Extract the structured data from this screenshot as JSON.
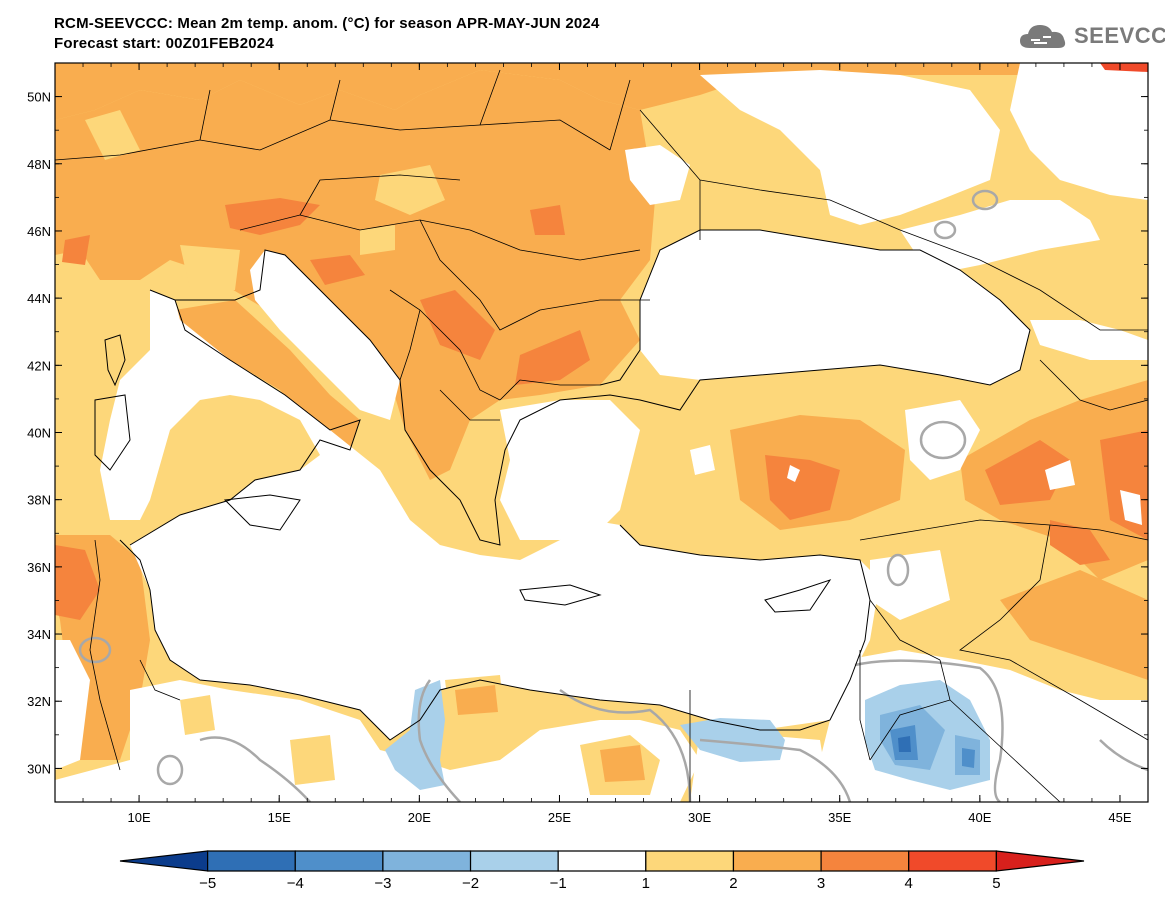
{
  "header": {
    "title_line1": "RCM-SEEVCCC: Mean 2m temp. anom. (°C) for season APR-MAY-JUN 2024",
    "title_line2": "Forecast start: 00Z01FEB2024",
    "logo_text": "SEEVCCC"
  },
  "map": {
    "lon_range": [
      7,
      46
    ],
    "lat_range": [
      29,
      51
    ],
    "lat_ticks": [
      "30N",
      "32N",
      "34N",
      "36N",
      "38N",
      "40N",
      "42N",
      "44N",
      "46N",
      "48N",
      "50N"
    ],
    "lon_ticks": [
      "10E",
      "15E",
      "20E",
      "25E",
      "30E",
      "35E",
      "40E",
      "45E"
    ]
  },
  "colorbar": {
    "labels": [
      "−5",
      "−4",
      "−3",
      "−2",
      "−1",
      "1",
      "2",
      "3",
      "4",
      "5"
    ],
    "colors": [
      "#0b3c8c",
      "#2f6fb5",
      "#4f8fca",
      "#7fb3dc",
      "#a9d0ea",
      "#ffffff",
      "#fdd77a",
      "#f9ad4f",
      "#f5843d",
      "#f04a2a",
      "#d8201c"
    ]
  }
}
